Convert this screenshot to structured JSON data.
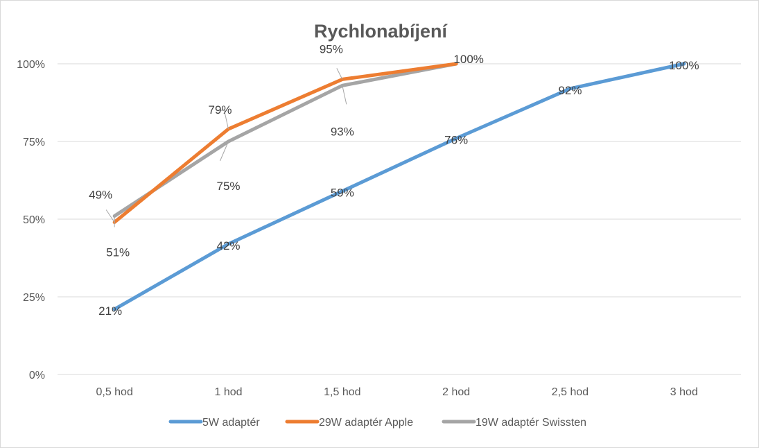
{
  "chart_data": {
    "type": "line",
    "title": "Rychlonabíjení",
    "xlabel": "",
    "ylabel": "",
    "categories": [
      "0,5 hod",
      "1 hod",
      "1,5 hod",
      "2 hod",
      "2,5 hod",
      "3 hod"
    ],
    "y_ticks": [
      "0%",
      "25%",
      "50%",
      "75%",
      "100%"
    ],
    "ylim": [
      0,
      100
    ],
    "grid": true,
    "legend": "bottom",
    "series": [
      {
        "name": "5W adaptér",
        "color": "#5b9bd5",
        "values": [
          21,
          42,
          59,
          76,
          92,
          100
        ],
        "labels": [
          "21%",
          "42%",
          "59%",
          "76%",
          "92%",
          "100%"
        ]
      },
      {
        "name": "29W adaptér Apple",
        "color": "#ed7d31",
        "values": [
          49,
          79,
          95,
          100,
          null,
          null
        ],
        "labels": [
          "49%",
          "79%",
          "95%",
          "100%",
          "",
          ""
        ]
      },
      {
        "name": "19W adaptér Swissten",
        "color": "#a5a5a5",
        "values": [
          51,
          75,
          93,
          100,
          null,
          null
        ],
        "labels": [
          "51%",
          "75%",
          "93%",
          "",
          "",
          ""
        ]
      }
    ]
  }
}
